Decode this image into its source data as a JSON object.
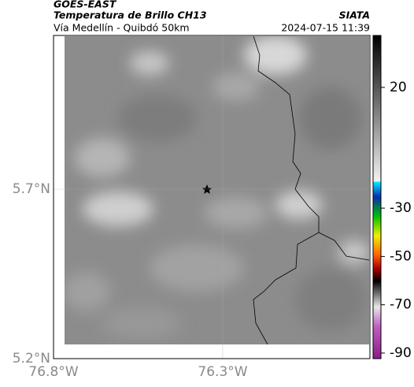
{
  "header": {
    "title": "GOES-EAST",
    "subtitle": "Temperatura de Brillo CH13",
    "location": "Vía Medellín - Quibdó 50km",
    "source": "SIATA",
    "timestamp": "2024-07-15 11:39"
  },
  "map": {
    "ylim": [
      5.2,
      6.1535
    ],
    "xlim": [
      -76.8,
      -75.8651
    ],
    "yticks": [
      {
        "value": 5.2,
        "label": "5.2°N"
      },
      {
        "value": 5.7,
        "label": "5.7°N"
      }
    ],
    "xticks": [
      {
        "value": -76.8,
        "label": "76.8°W"
      },
      {
        "value": -76.3,
        "label": "76.3°W"
      }
    ]
  },
  "colorbar": {
    "lim": [
      -92.3,
      41.5
    ],
    "ticks": [
      20,
      -30,
      -50,
      -70,
      -90
    ]
  }
}
